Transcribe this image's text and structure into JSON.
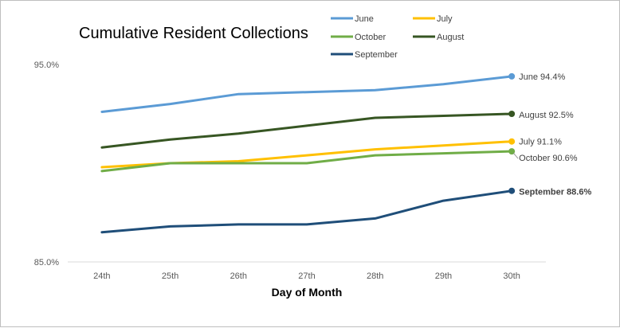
{
  "chart_data": {
    "type": "line",
    "title": "Cumulative Resident Collections",
    "xlabel": "Day of Month",
    "ylabel": "",
    "categories": [
      "24th",
      "25th",
      "26th",
      "27th",
      "28th",
      "29th",
      "30th"
    ],
    "ylim": [
      85.0,
      95.0
    ],
    "ytick_labels": [
      "95.0%",
      "85.0%"
    ],
    "yticks": [
      95.0,
      85.0
    ],
    "grid": false,
    "legend_position": "top-right",
    "series": [
      {
        "name": "June",
        "color": "#5B9BD5",
        "values": [
          92.6,
          93.0,
          93.5,
          93.6,
          93.7,
          94.0,
          94.4
        ],
        "end_label": "June 94.4%",
        "bold": false
      },
      {
        "name": "July",
        "color": "#FFC000",
        "values": [
          89.8,
          90.0,
          90.1,
          90.4,
          90.7,
          90.9,
          91.1
        ],
        "end_label": "July 91.1%",
        "bold": false
      },
      {
        "name": "October",
        "color": "#70AD47",
        "values": [
          89.6,
          90.0,
          90.0,
          90.0,
          90.4,
          90.5,
          90.6
        ],
        "end_label": "October 90.6%",
        "bold": false
      },
      {
        "name": "August",
        "color": "#375623",
        "values": [
          90.8,
          91.2,
          91.5,
          91.9,
          92.3,
          92.4,
          92.5
        ],
        "end_label": "August 92.5%",
        "bold": false
      },
      {
        "name": "September",
        "color": "#1F4E79",
        "values": [
          86.5,
          86.8,
          86.9,
          86.9,
          87.2,
          88.1,
          88.6
        ],
        "end_label": "September 88.6%",
        "bold": true
      }
    ]
  }
}
